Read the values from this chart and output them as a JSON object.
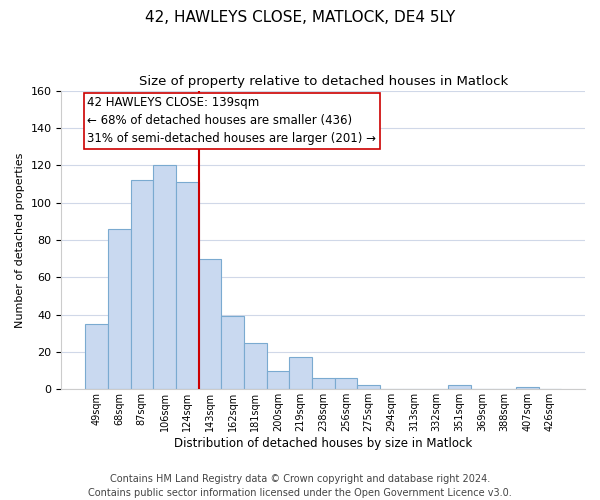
{
  "title": "42, HAWLEYS CLOSE, MATLOCK, DE4 5LY",
  "subtitle": "Size of property relative to detached houses in Matlock",
  "xlabel": "Distribution of detached houses by size in Matlock",
  "ylabel": "Number of detached properties",
  "bar_labels": [
    "49sqm",
    "68sqm",
    "87sqm",
    "106sqm",
    "124sqm",
    "143sqm",
    "162sqm",
    "181sqm",
    "200sqm",
    "219sqm",
    "238sqm",
    "256sqm",
    "275sqm",
    "294sqm",
    "313sqm",
    "332sqm",
    "351sqm",
    "369sqm",
    "388sqm",
    "407sqm",
    "426sqm"
  ],
  "bar_values": [
    35,
    86,
    112,
    120,
    111,
    70,
    39,
    25,
    10,
    17,
    6,
    6,
    2,
    0,
    0,
    0,
    2,
    0,
    0,
    1,
    0
  ],
  "bar_color": "#c9d9f0",
  "bar_edge_color": "#7aaad0",
  "vline_color": "#cc0000",
  "annotation_line1": "42 HAWLEYS CLOSE: 139sqm",
  "annotation_line2": "← 68% of detached houses are smaller (436)",
  "annotation_line3": "31% of semi-detached houses are larger (201) →",
  "annotation_box_edgecolor": "#cc0000",
  "annotation_fontsize": 8.5,
  "ylim": [
    0,
    160
  ],
  "yticks": [
    0,
    20,
    40,
    60,
    80,
    100,
    120,
    140,
    160
  ],
  "footer": "Contains HM Land Registry data © Crown copyright and database right 2024.\nContains public sector information licensed under the Open Government Licence v3.0.",
  "title_fontsize": 11,
  "subtitle_fontsize": 9.5,
  "footer_fontsize": 7,
  "background_color": "#ffffff",
  "grid_color": "#d0d8e8"
}
